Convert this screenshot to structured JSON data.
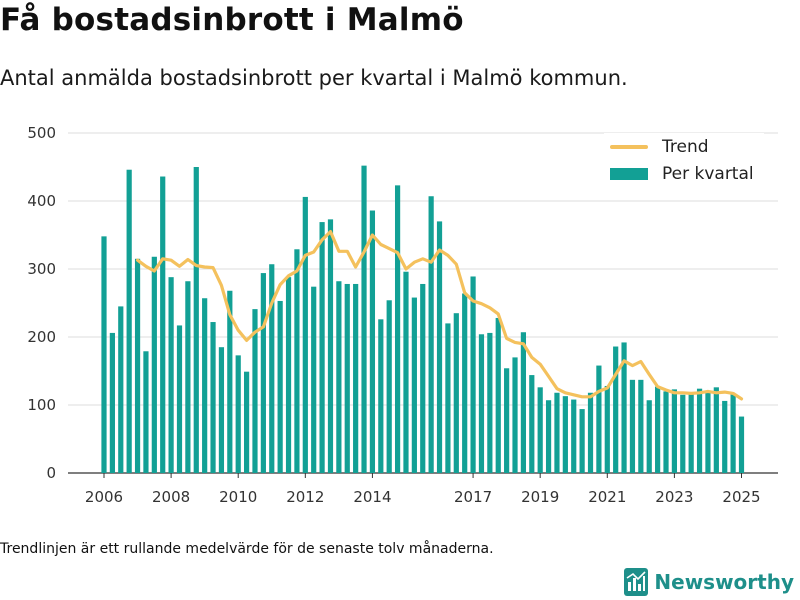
{
  "header": {
    "title": "Få bostadsinbrott i Malmö",
    "subtitle": "Antal anmälda bostadsinbrott per kvartal i Malmö kommun."
  },
  "footnote": "Trendlinjen är ett rullande medelvärde för de senaste tolv månaderna.",
  "logo": {
    "text": "Newsworthy",
    "icon": "newsworthy-chart-logo-icon"
  },
  "colors": {
    "bar": "#12a095",
    "trend": "#f4c15d",
    "grid": "#dddddd",
    "logo": "#1e8f8a"
  },
  "chart_data": {
    "type": "bar",
    "x_tick_labels": [
      "2006",
      "2008",
      "2010",
      "2012",
      "2014",
      "2017",
      "2019",
      "2021",
      "2023",
      "2025"
    ],
    "y_tick_labels": [
      "0",
      "100",
      "200",
      "300",
      "400",
      "500"
    ],
    "ylim": [
      0,
      500
    ],
    "grid": true,
    "legend_position": "top-right",
    "series": [
      {
        "name": "Per kvartal",
        "type": "bar",
        "values": [
          348,
          206,
          245,
          446,
          315,
          179,
          318,
          436,
          288,
          217,
          282,
          450,
          257,
          222,
          185,
          268,
          173,
          149,
          241,
          294,
          307,
          253,
          288,
          329,
          406,
          274,
          369,
          373,
          282,
          278,
          278,
          452,
          386,
          226,
          254,
          423,
          296,
          258,
          278,
          407,
          370,
          220,
          235,
          264,
          289,
          204,
          206,
          228,
          154,
          170,
          207,
          144,
          126,
          107,
          118,
          113,
          108,
          94,
          118,
          158,
          128,
          186,
          192,
          137,
          137,
          107,
          127,
          120,
          123,
          115,
          117,
          124,
          121,
          126,
          106,
          116,
          83
        ]
      },
      {
        "name": "Trend",
        "type": "line",
        "values": [
          null,
          null,
          null,
          null,
          313,
          304,
          297,
          315,
          313,
          304,
          314,
          305,
          303,
          302,
          276,
          233,
          210,
          195,
          207,
          215,
          250,
          277,
          290,
          297,
          320,
          325,
          343,
          355,
          326,
          326,
          303,
          325,
          350,
          336,
          330,
          324,
          300,
          310,
          315,
          310,
          328,
          320,
          307,
          265,
          253,
          249,
          243,
          234,
          198,
          192,
          190,
          170,
          160,
          142,
          124,
          118,
          115,
          112,
          112,
          120,
          125,
          145,
          165,
          158,
          164,
          145,
          127,
          122,
          118,
          118,
          117,
          118,
          120,
          118,
          119,
          117,
          109
        ]
      }
    ]
  }
}
